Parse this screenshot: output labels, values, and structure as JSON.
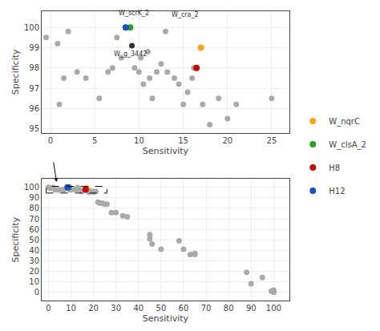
{
  "chart_data": [
    {
      "type": "scatter",
      "xlabel": "Sensitivity",
      "ylabel": "Specificity",
      "xlim": [
        -1,
        27
      ],
      "ylim": [
        94.8,
        100.8
      ],
      "xticks": [
        0,
        5,
        10,
        15,
        20,
        25
      ],
      "yticks": [
        95,
        96,
        97,
        98,
        99,
        100
      ],
      "grid": true,
      "legend": "right",
      "series": [
        {
          "color": "#aaaaaa",
          "x": [
            -0.5,
            0.8,
            1.0,
            1.5,
            2.0,
            3.0,
            4.0,
            5.5,
            6.5,
            7.0,
            7.5,
            8.0,
            9.5,
            10.0,
            10.2,
            10.5,
            11.0,
            11.2,
            11.5,
            12.0,
            12.5,
            13.2,
            14.0,
            14.5,
            15.0,
            15.5,
            16.0,
            16.2,
            17.2,
            18.0,
            19.0,
            20.0,
            21.0,
            25.0
          ],
          "values": [
            99.5,
            99.2,
            96.2,
            97.5,
            99.8,
            97.8,
            97.5,
            96.5,
            97.8,
            98.0,
            99.5,
            98.5,
            98.0,
            97.8,
            98.5,
            97.2,
            98.8,
            97.5,
            96.5,
            97.8,
            98.2,
            97.8,
            97.5,
            97.2,
            96.2,
            96.8,
            97.5,
            98.0,
            96.2,
            95.2,
            96.5,
            95.5,
            96.2,
            96.5
          ]
        },
        {
          "color": "#1f4fc4",
          "x": [
            8.5
          ],
          "values": [
            100.0
          ]
        },
        {
          "color": "#aaaaaa",
          "x": [
            13.0
          ],
          "values": [
            99.8
          ]
        },
        {
          "color": "#333333",
          "x": [
            9.2
          ],
          "values": [
            99.1
          ]
        },
        {
          "name": "W_nqrC",
          "color": "#f5a623",
          "x": [
            17.0
          ],
          "values": [
            99.0
          ]
        },
        {
          "name": "W_clsA_2",
          "color": "#2ca02c",
          "x": [
            9.0
          ],
          "values": [
            100.0
          ]
        },
        {
          "name": "H8",
          "color": "#cc0000",
          "x": [
            16.5
          ],
          "values": [
            98.0
          ]
        },
        {
          "name": "H12",
          "color": "#1f4fc4",
          "x": [
            8.5
          ],
          "values": [
            100.0
          ]
        }
      ],
      "annotations": [
        {
          "text": "W_scrK_2",
          "x": 7.5,
          "y": 100.45
        },
        {
          "text": "W_cra_2",
          "x": 13.5,
          "y": 100.35
        },
        {
          "text": "W_g_3442",
          "x": 7.0,
          "y": 98.95
        }
      ]
    },
    {
      "type": "scatter",
      "xlabel": "Sensitivity",
      "ylabel": "Specificity",
      "xlim": [
        -3,
        107
      ],
      "ylim": [
        -8,
        108
      ],
      "xticks": [
        0,
        10,
        20,
        30,
        40,
        50,
        60,
        70,
        80,
        90,
        100
      ],
      "yticks": [
        0,
        10,
        20,
        30,
        40,
        50,
        60,
        70,
        80,
        90,
        100
      ],
      "grid": true,
      "series": [
        {
          "color": "#aaaaaa",
          "x": [
            0,
            1,
            2,
            3,
            4,
            5,
            6,
            7,
            8,
            8.5,
            9,
            9.5,
            10,
            11,
            12,
            13,
            14,
            15,
            16,
            17,
            17.5,
            18,
            19,
            20,
            21,
            22,
            23,
            24,
            25,
            26,
            28,
            30,
            33,
            35,
            45,
            45,
            46,
            50,
            58,
            60,
            63,
            65,
            65,
            88,
            90,
            95,
            99,
            100,
            100,
            100,
            100
          ],
          "values": [
            100,
            99.2,
            99.8,
            97.8,
            97.5,
            97.5,
            97.8,
            98.0,
            99.5,
            100.0,
            99.2,
            98.0,
            97.8,
            98.8,
            97.8,
            99.8,
            97.5,
            96.2,
            97.5,
            99.0,
            97.5,
            95.2,
            96.5,
            95.5,
            96.2,
            86,
            85,
            85,
            84,
            84,
            76,
            76,
            73,
            72,
            55,
            51,
            46,
            41,
            49,
            41,
            36,
            37,
            36,
            19,
            8,
            14,
            1,
            0,
            0,
            1,
            2
          ]
        },
        {
          "color": "#1f4fc4",
          "x": [
            8.5
          ],
          "values": [
            100.0
          ]
        },
        {
          "name": "W_clsA_2",
          "color": "#2ca02c",
          "x": [
            9.0
          ],
          "values": [
            100.0
          ]
        },
        {
          "name": "W_nqrC",
          "color": "#f5a623",
          "x": [
            17.0
          ],
          "values": [
            99.0
          ]
        },
        {
          "name": "H8",
          "color": "#cc0000",
          "x": [
            16.5
          ],
          "values": [
            98.0
          ]
        },
        {
          "name": "H12",
          "color": "#1f4fc4",
          "x": [
            8.5
          ],
          "values": [
            100.0
          ]
        }
      ],
      "zoom_box": {
        "x": -1,
        "y": 94.6,
        "width": 27,
        "height": 6.4
      }
    }
  ]
}
